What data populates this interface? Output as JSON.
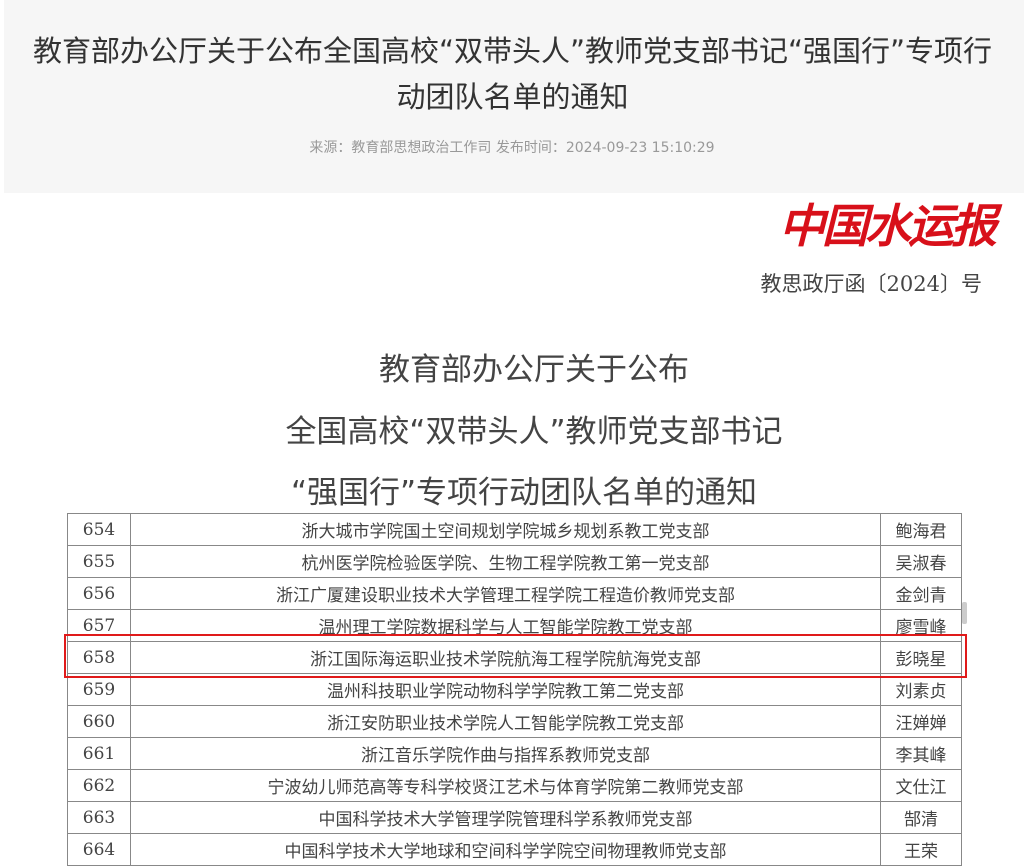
{
  "article": {
    "title": "教育部办公厅关于公布全国高校“双带头人”教师党支部书记“强国行”专项行动团队名单的通知",
    "meta": "来源：教育部思想政治工作司 发布时间：2024-09-23 15:10:29"
  },
  "document": {
    "doc_number": "教思政厅函〔2024〕号",
    "heading": [
      "教育部办公厅关于公布",
      "全国高校“双带头人”教师党支部书记",
      "“强国行”专项行动团队名单的通知"
    ]
  },
  "table": {
    "rows": [
      [
        "654",
        "浙大城市学院国土空间规划学院城乡规划系教工党支部",
        "鲍海君"
      ],
      [
        "655",
        "杭州医学院检验医学院、生物工程学院教工第一党支部",
        "吴淑春"
      ],
      [
        "656",
        "浙江广厦建设职业技术大学管理工程学院工程造价教师党支部",
        "金剑青"
      ],
      [
        "657",
        "温州理工学院数据科学与人工智能学院教工党支部",
        "廖雪峰"
      ],
      [
        "658",
        "浙江国际海运职业技术学院航海工程学院航海党支部",
        "彭晓星"
      ],
      [
        "659",
        "温州科技职业学院动物科学学院教工第二党支部",
        "刘素贞"
      ],
      [
        "660",
        "浙江安防职业技术学院人工智能学院教工党支部",
        "汪婵婵"
      ],
      [
        "661",
        "浙江音乐学院作曲与指挥系教师党支部",
        "李其峰"
      ],
      [
        "662",
        "宁波幼儿师范高等专科学校贤江艺术与体育学院第二教师党支部",
        "文仕江"
      ],
      [
        "663",
        "中国科学技术大学管理学院管理科学系教师党支部",
        "郜清"
      ],
      [
        "664",
        "中国科学技术大学地球和空间科学学院空间物理教师党支部",
        "王荣"
      ]
    ],
    "highlighted_row": "658",
    "highlight_color": "#e01a1a"
  },
  "watermark": {
    "text": "中国水运报",
    "color": "#d8101a"
  }
}
